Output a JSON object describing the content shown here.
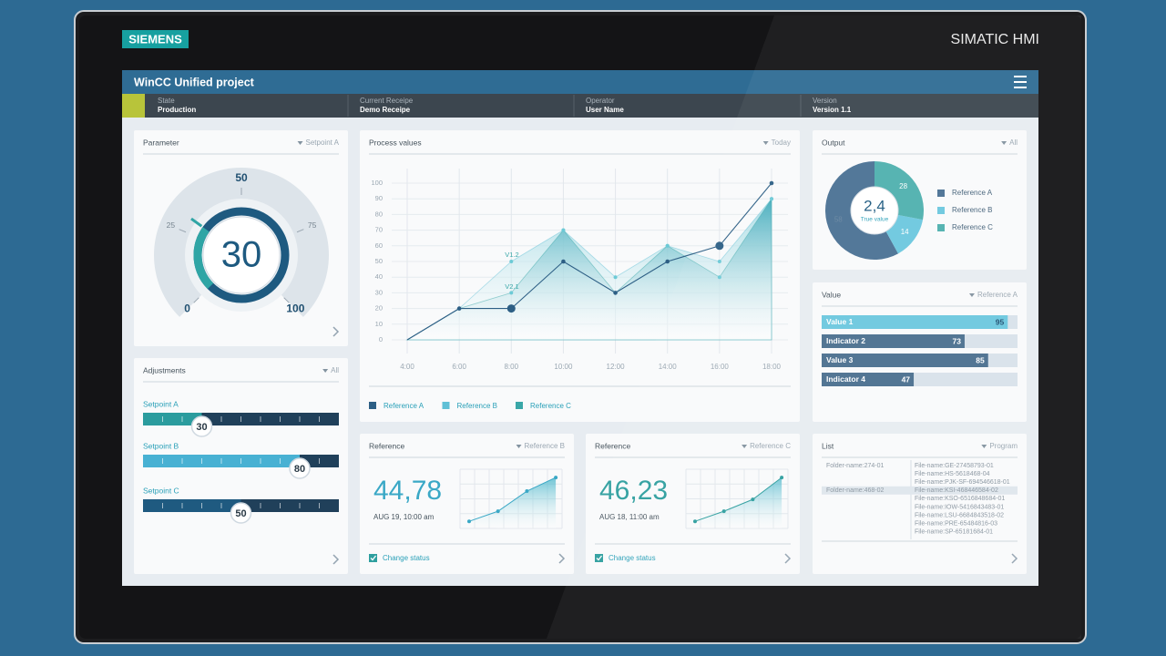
{
  "device": {
    "brand": "SIEMENS",
    "model": "SIMATIC HMI"
  },
  "header": {
    "title": "WinCC Unified project"
  },
  "status": [
    {
      "label": "State",
      "value": "Production"
    },
    {
      "label": "Current Receipe",
      "value": "Demo Receipe"
    },
    {
      "label": "Operator",
      "value": "User Name"
    },
    {
      "label": "Version",
      "value": "Version 1.1"
    }
  ],
  "parameter": {
    "title": "Parameter",
    "selector": "Setpoint A",
    "value": 30,
    "range": [
      0,
      100
    ],
    "ticks": [
      0,
      25,
      50,
      75,
      100
    ]
  },
  "adjustments": {
    "title": "Adjustments",
    "selector": "All",
    "range": [
      0,
      100
    ],
    "sliders": [
      {
        "label": "Setpoint A",
        "value": 30,
        "color": "#2b9c9e"
      },
      {
        "label": "Setpoint B",
        "value": 80,
        "color": "#48b1d3"
      },
      {
        "label": "Setpoint C",
        "value": 50,
        "color": "#1f5a80"
      }
    ]
  },
  "process_values": {
    "type": "area",
    "title": "Process values",
    "selector": "Today",
    "categories": [
      "4:00",
      "6:00",
      "8:00",
      "10:00",
      "12:00",
      "14:00",
      "16:00",
      "18:00"
    ],
    "series": [
      {
        "name": "Reference A",
        "kind": "line",
        "color": "#2d5f85",
        "values": [
          0,
          20,
          20,
          50,
          30,
          50,
          60,
          100
        ]
      },
      {
        "name": "Reference B",
        "kind": "area",
        "color": "#5fc0d6",
        "values": [
          0,
          20,
          50,
          70,
          40,
          60,
          50,
          90
        ]
      },
      {
        "name": "Reference C",
        "kind": "area",
        "color": "#3aa7a8",
        "values": [
          0,
          20,
          30,
          70,
          30,
          60,
          40,
          90
        ]
      }
    ],
    "ylim": [
      0,
      100
    ],
    "yticks": [
      0,
      10,
      20,
      30,
      40,
      50,
      60,
      70,
      80,
      90,
      100
    ],
    "annotations": [
      "V1.2",
      "V2.1"
    ]
  },
  "references": [
    {
      "title": "Reference",
      "selector": "Reference B",
      "value": "44,78",
      "date": "AUG 19, 10:00 am",
      "status": "Change status",
      "color": "#3aa8c6",
      "trend": [
        12,
        29,
        63,
        86
      ],
      "ylim": [
        0,
        100
      ]
    },
    {
      "title": "Reference",
      "selector": "Reference C",
      "value": "46,23",
      "date": "AUG 18, 11:00 am",
      "status": "Change status",
      "color": "#2e9f9f",
      "trend": [
        12,
        29,
        49,
        86
      ],
      "ylim": [
        0,
        100
      ]
    }
  ],
  "output": {
    "type": "donut",
    "title": "Output",
    "selector": "All",
    "center_value": "2,4",
    "center_label": "True value",
    "series": [
      {
        "name": "Reference A",
        "value": 58,
        "color": "#4a7194"
      },
      {
        "name": "Reference B",
        "value": 14,
        "color": "#6cc8df"
      },
      {
        "name": "Reference C",
        "value": 28,
        "color": "#4fb0ae"
      }
    ]
  },
  "value": {
    "title": "Value",
    "selector": "Reference A",
    "range": [
      0,
      100
    ],
    "bars": [
      {
        "name": "Value 1",
        "value": 95,
        "color": "#6cc8df"
      },
      {
        "name": "Indicator 2",
        "value": 73,
        "color": "#4a6f8f"
      },
      {
        "name": "Value 3",
        "value": 85,
        "color": "#4a6f8f"
      },
      {
        "name": "Indicator 4",
        "value": 47,
        "color": "#4a6f8f"
      }
    ]
  },
  "list": {
    "title": "List",
    "selector": "Program",
    "selected_row": 3,
    "rows": [
      [
        "Folder-name:274-01",
        "File-name:GE-27458793-01"
      ],
      [
        null,
        "File-name:HS-5618468-04"
      ],
      [
        null,
        "File-name:PJK-SF-694546618-01"
      ],
      [
        "Folder-name:468-02",
        "File-name:KSI-468446584-02"
      ],
      [
        null,
        "File-name:KSO-6516848684-01"
      ],
      [
        null,
        "File-name:IOW-5416843483-01"
      ],
      [
        null,
        "File-name:LSU-6684843518-02"
      ],
      [
        null,
        "File-name:PRE-65484816-03"
      ],
      [
        null,
        "File-name:SP-65181684-01"
      ]
    ]
  }
}
